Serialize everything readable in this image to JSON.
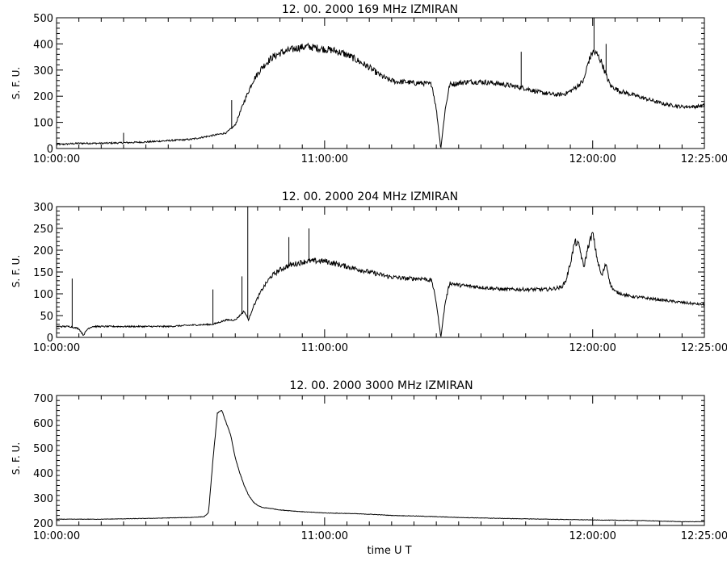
{
  "figure": {
    "xlabel": "time   U T"
  },
  "chart_data": [
    {
      "type": "line",
      "title": "12.  00.  2000    169 MHz    IZMIRAN",
      "ylabel": "S. F. U.",
      "xlabel": "",
      "x_unit": "minutes after 10:00:00 UT",
      "xlim": [
        0,
        145
      ],
      "ylim": [
        0,
        500
      ],
      "yticks": [
        0,
        100,
        200,
        300,
        400,
        500
      ],
      "xticks": [
        {
          "value": 0,
          "label": "10:00:00"
        },
        {
          "value": 60,
          "label": "11:00:00"
        },
        {
          "value": 120,
          "label": "12:00:00"
        },
        {
          "value": 145,
          "label": "12:25:00"
        }
      ],
      "grid": false,
      "series": [
        {
          "x": [
            0,
            5,
            10,
            15,
            20,
            25,
            30,
            35,
            38,
            40,
            42,
            44,
            46,
            48,
            50,
            52,
            54,
            56,
            58,
            60,
            62,
            64,
            66,
            68,
            70,
            72,
            74,
            76,
            78,
            80,
            82,
            84,
            85,
            86,
            87,
            88,
            90,
            92,
            95,
            98,
            100,
            105,
            108,
            110,
            112,
            114,
            116,
            118,
            119,
            120,
            121,
            122,
            123,
            124,
            126,
            128,
            130,
            133,
            136,
            140,
            143,
            145
          ],
          "y": [
            15,
            20,
            20,
            22,
            25,
            30,
            35,
            50,
            60,
            90,
            180,
            260,
            310,
            345,
            365,
            375,
            385,
            390,
            385,
            380,
            375,
            365,
            350,
            330,
            310,
            285,
            265,
            255,
            255,
            250,
            250,
            245,
            150,
            0,
            150,
            245,
            250,
            255,
            255,
            250,
            245,
            230,
            215,
            210,
            205,
            210,
            230,
            260,
            330,
            370,
            360,
            330,
            280,
            240,
            220,
            210,
            200,
            185,
            170,
            160,
            160,
            165
          ]
        }
      ],
      "spikes": [
        {
          "x": 39.2,
          "y": 185
        },
        {
          "x": 104,
          "y": 370
        },
        {
          "x": 120.3,
          "y": 500
        },
        {
          "x": 123,
          "y": 400
        },
        {
          "x": 15,
          "y": 60
        }
      ]
    },
    {
      "type": "line",
      "title": "12.  00.  2000    204 MHz    IZMIRAN",
      "ylabel": "S. F. U.",
      "xlabel": "",
      "x_unit": "minutes after 10:00:00 UT",
      "xlim": [
        0,
        145
      ],
      "ylim": [
        0,
        300
      ],
      "yticks": [
        0,
        50,
        100,
        150,
        200,
        250,
        300
      ],
      "xticks": [
        {
          "value": 0,
          "label": "10:00:00"
        },
        {
          "value": 60,
          "label": "11:00:00"
        },
        {
          "value": 120,
          "label": "12:00:00"
        },
        {
          "value": 145,
          "label": "12:25:00"
        }
      ],
      "grid": false,
      "series": [
        {
          "x": [
            0,
            3,
            5,
            6,
            7,
            8,
            10,
            15,
            20,
            25,
            30,
            35,
            38,
            40,
            42,
            43,
            44,
            46,
            48,
            50,
            52,
            54,
            56,
            58,
            60,
            62,
            64,
            66,
            68,
            70,
            74,
            78,
            80,
            82,
            84,
            85,
            86,
            87,
            88,
            90,
            95,
            100,
            105,
            110,
            113,
            114,
            115,
            116,
            117,
            118,
            119,
            120,
            121,
            122,
            123,
            124,
            125,
            128,
            132,
            136,
            140,
            145
          ],
          "y": [
            25,
            25,
            20,
            5,
            20,
            25,
            25,
            25,
            25,
            25,
            28,
            30,
            40,
            40,
            60,
            40,
            70,
            110,
            140,
            155,
            165,
            170,
            175,
            175,
            175,
            170,
            165,
            160,
            155,
            150,
            140,
            135,
            135,
            135,
            130,
            80,
            0,
            80,
            125,
            120,
            115,
            110,
            110,
            110,
            115,
            130,
            170,
            220,
            210,
            160,
            210,
            240,
            180,
            140,
            170,
            120,
            105,
            95,
            90,
            85,
            80,
            75
          ]
        }
      ],
      "spikes": [
        {
          "x": 42.8,
          "y": 300
        },
        {
          "x": 41.5,
          "y": 140
        },
        {
          "x": 3.5,
          "y": 135
        },
        {
          "x": 56.5,
          "y": 250
        },
        {
          "x": 52,
          "y": 230
        },
        {
          "x": 35,
          "y": 110
        }
      ]
    },
    {
      "type": "line",
      "title": "12.  00.  2000    3000 MHz    IZMIRAN",
      "ylabel": "S. F. U.",
      "xlabel": "",
      "x_unit": "minutes after 10:00:00 UT",
      "xlim": [
        0,
        145
      ],
      "ylim": [
        190,
        710
      ],
      "yticks": [
        200,
        300,
        400,
        500,
        600,
        700
      ],
      "xticks": [
        {
          "value": 0,
          "label": "10:00:00"
        },
        {
          "value": 60,
          "label": "11:00:00"
        },
        {
          "value": 120,
          "label": "12:00:00"
        },
        {
          "value": 145,
          "label": "12:25:00"
        }
      ],
      "grid": false,
      "series": [
        {
          "x": [
            0,
            10,
            20,
            25,
            30,
            33,
            34,
            35,
            36,
            37,
            38,
            39,
            40,
            41,
            42,
            43,
            44,
            45,
            46,
            48,
            50,
            55,
            60,
            65,
            70,
            75,
            80,
            90,
            100,
            110,
            120,
            130,
            140,
            145
          ],
          "y": [
            215,
            215,
            218,
            220,
            222,
            225,
            240,
            450,
            640,
            650,
            600,
            550,
            460,
            400,
            350,
            310,
            285,
            270,
            262,
            258,
            252,
            245,
            240,
            238,
            235,
            230,
            228,
            222,
            218,
            215,
            212,
            210,
            205,
            205
          ]
        }
      ],
      "spikes": []
    }
  ]
}
